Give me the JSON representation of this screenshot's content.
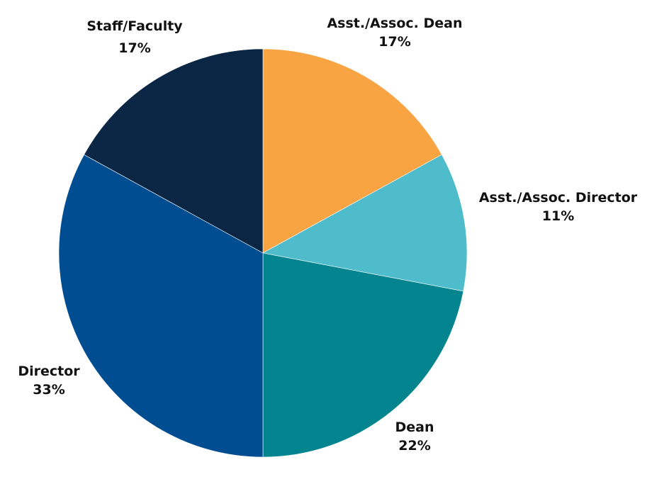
{
  "chart_data": {
    "type": "pie",
    "title": "",
    "start_angle_deg": 0,
    "direction": "clockwise",
    "categories": [
      "Asst./Assoc. Dean",
      "Asst./Assoc. Director",
      "Dean",
      "Director",
      "Staff/Faculty"
    ],
    "values": [
      17,
      11,
      22,
      33,
      17
    ],
    "value_labels": [
      "17%",
      "11%",
      "22%",
      "33%",
      "17%"
    ],
    "colors": [
      "#F9A443",
      "#4FBCCC",
      "#03848F",
      "#004E91",
      "#0A2644"
    ],
    "legend": "none (data labels outside slices)"
  },
  "labels": [
    {
      "name": "Asst./Assoc. Dean",
      "pct": "17%"
    },
    {
      "name": "Asst./Assoc. Director",
      "pct": "11%"
    },
    {
      "name": "Dean",
      "pct": "22%"
    },
    {
      "name": "Director",
      "pct": "33%"
    },
    {
      "name": "Staff/Faculty",
      "pct": "17%"
    }
  ]
}
